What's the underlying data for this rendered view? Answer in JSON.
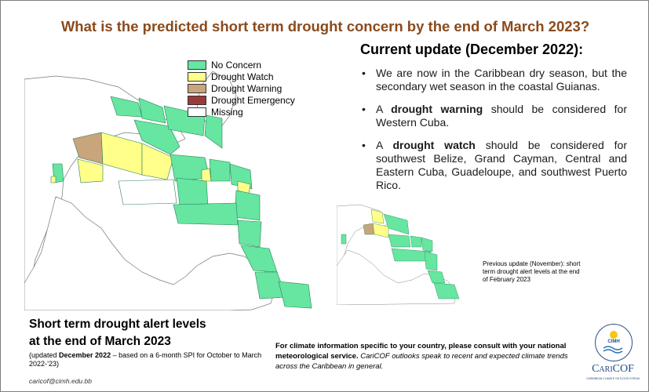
{
  "title": "What is the predicted short term drought concern by the end of March 2023?",
  "update": {
    "heading": "Current update (December 2022)",
    "heading_suffix": ":",
    "bullets": [
      {
        "before": "We are now in the Caribbean dry season, but the secondary wet season in the coastal Guianas.",
        "bold": "",
        "after": ""
      },
      {
        "before": "A ",
        "bold": "drought warning",
        "after": " should be considered for Western Cuba."
      },
      {
        "before": "A ",
        "bold": "drought watch",
        "after": " should be considered for southwest Belize, Grand Cayman, Central and Eastern Cuba, Guadeloupe, and southwest Puerto Rico."
      }
    ],
    "bullet_char": "•"
  },
  "legend": [
    {
      "label": "No Concern",
      "color": "#66e6a0"
    },
    {
      "label": "Drought Watch",
      "color": "#ffff8a"
    },
    {
      "label": "Drought Warning",
      "color": "#c8a57a"
    },
    {
      "label": "Drought Emergency",
      "color": "#9c3a3a"
    },
    {
      "label": "Missing",
      "color": "#ffffff"
    }
  ],
  "previous_note": "Previous update (November): short term drought alert levels at the end of February 2023",
  "footer": {
    "title_line1": "Short term drought alert levels",
    "title_line2": "at the end of March 2023",
    "sub_before": "(updated ",
    "sub_bold": "December 2022",
    "sub_after": " – based on a 6-month SPI for October to March 2022-’23)",
    "email": "caricof@cimh.edu.bb"
  },
  "info": {
    "bold": "For climate information specific to your country, please consult with your national meteorological service.",
    "italic": " CariCOF outlooks speak to recent and expected climate trends across the Caribbean in general."
  },
  "logos": {
    "cimh": "CIMH",
    "caricof": "CariCOF",
    "caricof_sub": "CARIBBEAN CLIMATE OUTLOOK FORUM"
  },
  "colors": {
    "title": "#8a4a1c",
    "no_concern": "#66e6a0",
    "watch": "#ffff8a",
    "warning": "#c8a57a",
    "emergency": "#9c3a3a"
  }
}
